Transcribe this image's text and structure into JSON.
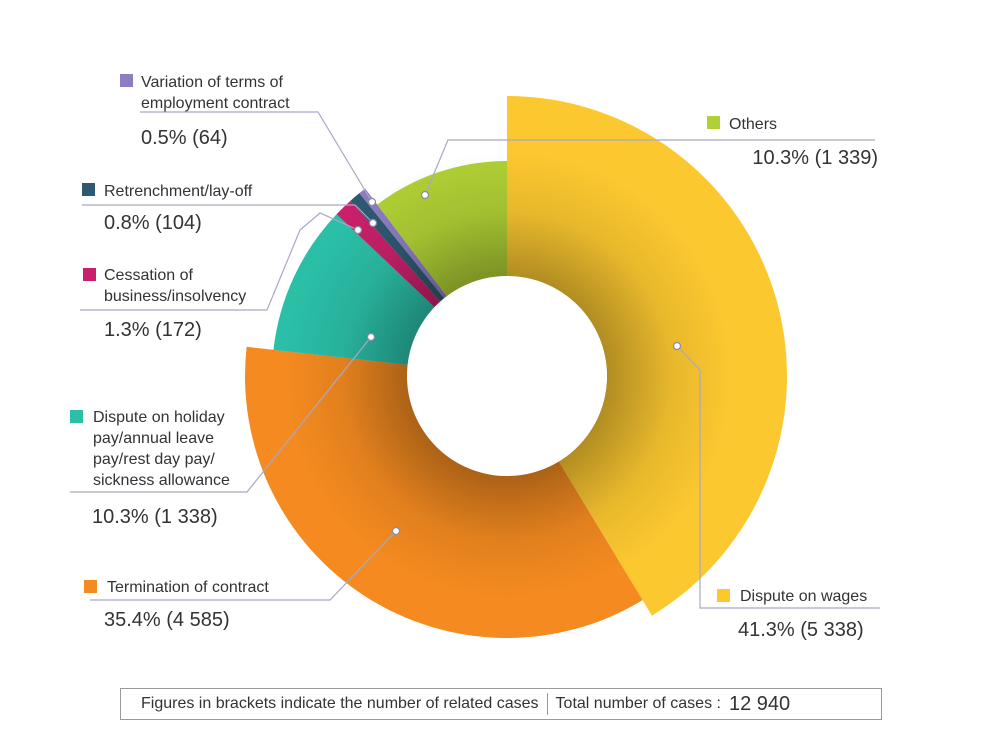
{
  "chart_data": {
    "type": "pie",
    "style": "donut with variable outer radius",
    "slices": [
      {
        "key": "wages",
        "label": "Dispute on wages",
        "value_text": "41.3% (5 338)",
        "percent": 41.3,
        "cases": 5338,
        "color": "#fcc830"
      },
      {
        "key": "termination",
        "label": "Termination of contract",
        "value_text": "35.4% (4 585)",
        "percent": 35.4,
        "cases": 4585,
        "color": "#f58b20"
      },
      {
        "key": "holiday",
        "label": "Dispute on holiday pay/annual leave pay/rest day pay/ sickness allowance",
        "label_lines": [
          "Dispute on holiday",
          "pay/annual leave",
          "pay/rest day pay/",
          "sickness allowance"
        ],
        "value_text": "10.3% (1 338)",
        "percent": 10.3,
        "cases": 1338,
        "color": "#2bbfa8"
      },
      {
        "key": "cessation",
        "label": "Cessation of business/insolvency",
        "label_lines": [
          "Cessation of",
          "business/insolvency"
        ],
        "value_text": "1.3% (172)",
        "percent": 1.3,
        "cases": 172,
        "color": "#c8206a"
      },
      {
        "key": "retrenchment",
        "label": "Retrenchment/lay-off",
        "label_lines": [
          "Retrenchment/lay-off"
        ],
        "value_text": "0.8% (104)",
        "percent": 0.8,
        "cases": 104,
        "color": "#2d5a70"
      },
      {
        "key": "variation",
        "label": "Variation of terms of employment contract",
        "label_lines": [
          "Variation of terms of",
          "employment contract"
        ],
        "value_text": "0.5% (64)",
        "percent": 0.5,
        "cases": 64,
        "color": "#8e7cc3"
      },
      {
        "key": "others",
        "label": "Others",
        "label_lines": [
          "Others"
        ],
        "value_text": "10.3% (1 339)",
        "percent": 10.3,
        "cases": 1339,
        "color": "#b0d035"
      }
    ],
    "legend_placement": "around the chart, with leader lines"
  },
  "footnote": {
    "note": "Figures in brackets indicate the number of related cases",
    "total_label": "Total number of cases :",
    "total_value": "12 940"
  }
}
